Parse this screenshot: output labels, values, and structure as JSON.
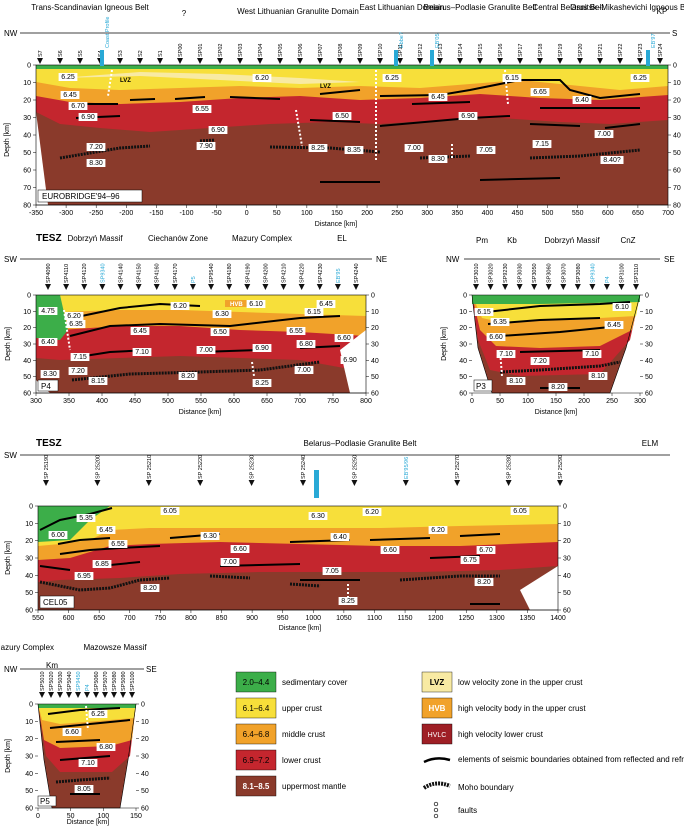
{
  "colors": {
    "sedimentary": "#3cae49",
    "upper_crust": "#f7df3a",
    "middle_crust": "#f1a22a",
    "lower_crust": "#c4262e",
    "mantle": "#8a3a2b",
    "lvz": "#f8eaa3",
    "hvb": "#f1a22a",
    "hvlc": "#9e1f25",
    "sp_highlight": "#29a9d6"
  },
  "icons": [
    "shot-point-triangle-icon",
    "fault-icon",
    "moho-boundary-icon",
    "reflector-icon"
  ],
  "panels": {
    "eurobridge": {
      "regions": [
        "Trans-Scandinavian Igneous Belt",
        "?",
        "West Lithuanian Granulite Domain",
        "East Lithuanian Domain",
        "Belarus–Podlasie Granulite Belt",
        "Central Belarus Belt",
        "Osnitsk–Mikashevichi Igneous Belt"
      ],
      "left": "NW",
      "right": "S",
      "right_top": "KP",
      "sp_labels": [
        "S7",
        "S6",
        "S5",
        "S4",
        "S3",
        "S2",
        "S1",
        "SP00",
        "SP01",
        "SP02",
        "SP03",
        "SP04",
        "SP05",
        "SP06",
        "SP07",
        "SP08",
        "SP09",
        "SP10",
        "SP11",
        "SP12",
        "SP13",
        "SP14",
        "SP15",
        "SP16",
        "SP17",
        "SP18",
        "SP19",
        "SP20",
        "SP21",
        "SP22",
        "SP23",
        "SP24"
      ],
      "sp_cross": [
        "Coast Profile",
        "Ebbe?",
        "EB'05",
        "EB'97"
      ],
      "name": "EUROBRIDGE'94–96",
      "ylabel": "Depth [km]",
      "xlabel": "Distance [km]",
      "yticks": [
        "0",
        "10",
        "20",
        "30",
        "40",
        "50",
        "60",
        "70",
        "80"
      ],
      "xticks": [
        "-350",
        "-300",
        "-250",
        "-200",
        "-150",
        "-100",
        "-50",
        "0",
        "50",
        "100",
        "150",
        "200",
        "250",
        "300",
        "350",
        "400",
        "450",
        "500",
        "550",
        "600",
        "650",
        "700"
      ],
      "velocities": [
        "6.25",
        "6.20",
        "6.25",
        "6.15",
        "6.25",
        "6.45",
        "6.70",
        "6.90",
        "6.55",
        "6.50",
        "6.45",
        "6.65",
        "6.40",
        "6.90",
        "6.90",
        "7.00",
        "7.20",
        "8.30",
        "7.90",
        "8.25",
        "8.35",
        "7.00",
        "8.30",
        "7.05",
        "7.15",
        "8.40?"
      ],
      "lvz": "LVZ"
    },
    "p4": {
      "left": "SW",
      "right": "NE",
      "regions": [
        "TESZ",
        "Dobrzyń Massif",
        "Ciechanów Zone",
        "Mazury Complex",
        "EL"
      ],
      "sp_labels": [
        "SP4090",
        "SP4110",
        "SP4120",
        "SP9340",
        "SP4140",
        "SP4150",
        "SP4160",
        "SP4170",
        "P5",
        "SP9540",
        "SP4180",
        "SP4190",
        "SP4200",
        "SP4210",
        "SP4220",
        "SP4230",
        "EB'95",
        "SP4240"
      ],
      "name": "P4",
      "ylabel": "Depth [km]",
      "xlabel": "Distance [km]",
      "yticks": [
        "0",
        "10",
        "20",
        "30",
        "40",
        "50",
        "60"
      ],
      "xticks": [
        "300",
        "350",
        "400",
        "450",
        "500",
        "550",
        "600",
        "650",
        "700",
        "750",
        "800"
      ],
      "velocities": [
        "4.75",
        "6.20",
        "6.20",
        "6.30",
        "6.10",
        "6.45",
        "6.15",
        "6.40",
        "6.35",
        "6.45",
        "6.50",
        "6.55",
        "6.60",
        "7.15",
        "7.10",
        "7.00",
        "6.90",
        "6.80",
        "6.90",
        "7.00",
        "7.20",
        "8.30",
        "8.15",
        "8.20",
        "8.25"
      ],
      "hvb": "HVB"
    },
    "p3": {
      "left": "NW",
      "right": "SE",
      "regions": [
        "Pm",
        "Kb",
        "Dobrzyń Massif",
        "CnZ"
      ],
      "sp_labels": [
        "SP3010",
        "SP3020",
        "SP9230",
        "SP3030",
        "SP3050",
        "SP3060",
        "SP3070",
        "SP3080",
        "SP9340",
        "P4",
        "SP3100",
        "SP3110"
      ],
      "name": "P3",
      "ylabel": "Depth [km]",
      "xlabel": "Distance [km]",
      "yticks": [
        "0",
        "10",
        "20",
        "30",
        "40",
        "50",
        "60"
      ],
      "xticks": [
        "0",
        "50",
        "100",
        "150",
        "200",
        "250",
        "300"
      ],
      "velocities": [
        "6.10",
        "6.15",
        "6.35",
        "6.45",
        "6.60",
        "7.10",
        "7.20",
        "7.10",
        "8.10",
        "8.10",
        "8.20"
      ]
    },
    "cel05": {
      "left": "SW",
      "right": "ELM",
      "regions": [
        "TESZ",
        "Belarus–Podlasie  Granulite  Belt"
      ],
      "sp_labels": [
        "SP 25190",
        "SP 25200",
        "SP 25210",
        "SP 25220",
        "SP 25230",
        "SP 25240",
        "SP 25250",
        "EB'95/96",
        "SP 25270",
        "SP 25280",
        "SP 25290"
      ],
      "name": "CEL05",
      "ylabel": "Depth [km]",
      "xlabel": "Distance [km]",
      "yticks": [
        "0",
        "10",
        "20",
        "30",
        "40",
        "50",
        "60"
      ],
      "xticks": [
        "550",
        "600",
        "650",
        "700",
        "750",
        "800",
        "850",
        "900",
        "950",
        "1000",
        "1050",
        "1100",
        "1150",
        "1200",
        "1250",
        "1300",
        "1350",
        "1400"
      ],
      "velocities": [
        "5.35",
        "6.05",
        "6.30",
        "6.20",
        "6.05",
        "6.00",
        "6.45",
        "6.30",
        "6.40",
        "6.20",
        "6.55",
        "6.60",
        "6.60",
        "6.70",
        "6.85",
        "7.00",
        "6.75",
        "6.95",
        "7.05",
        "8.20",
        "8.20",
        "8.25"
      ]
    },
    "p5": {
      "left": "NW",
      "right": "SE",
      "regions": [
        "Mazury Complex",
        "Km",
        "Mazowsze Massif"
      ],
      "sp_labels": [
        "SP5010",
        "SP5020",
        "SP5030",
        "SP5040",
        "SP9450",
        "P4",
        "SP5060",
        "SP5070",
        "SP5080",
        "SP5090",
        "SP5100"
      ],
      "name": "P5",
      "ylabel": "Depth [km]",
      "xlabel": "Distance [km]",
      "yticks": [
        "0",
        "10",
        "20",
        "30",
        "40",
        "50",
        "60"
      ],
      "xticks": [
        "0",
        "50",
        "100",
        "150"
      ],
      "velocities": [
        "6.25",
        "6.60",
        "6.80",
        "7.10",
        "8.05"
      ]
    }
  },
  "legend": {
    "items": [
      {
        "key": "2.0–4.4",
        "label": "sedimentary cover"
      },
      {
        "key": "6.1–6.4",
        "label": "upper crust"
      },
      {
        "key": "6.4–6.8",
        "label": "middle crust"
      },
      {
        "key": "6.9–7.2",
        "label": "lower crust"
      },
      {
        "key": "8.1–8.5",
        "label": "uppermost mantle"
      }
    ],
    "right_items": [
      {
        "key": "LVZ",
        "label": "low velocity zone in the upper crust"
      },
      {
        "key": "HVB",
        "label": "high velocity body in the upper crust"
      },
      {
        "key": "HVLC",
        "label": "high velocity lower crust"
      }
    ],
    "symbols": [
      {
        "label": "elements of seismic boundaries obtained from reflected and refracted waves"
      },
      {
        "label": "Moho boundary"
      },
      {
        "label": "faults"
      }
    ]
  }
}
